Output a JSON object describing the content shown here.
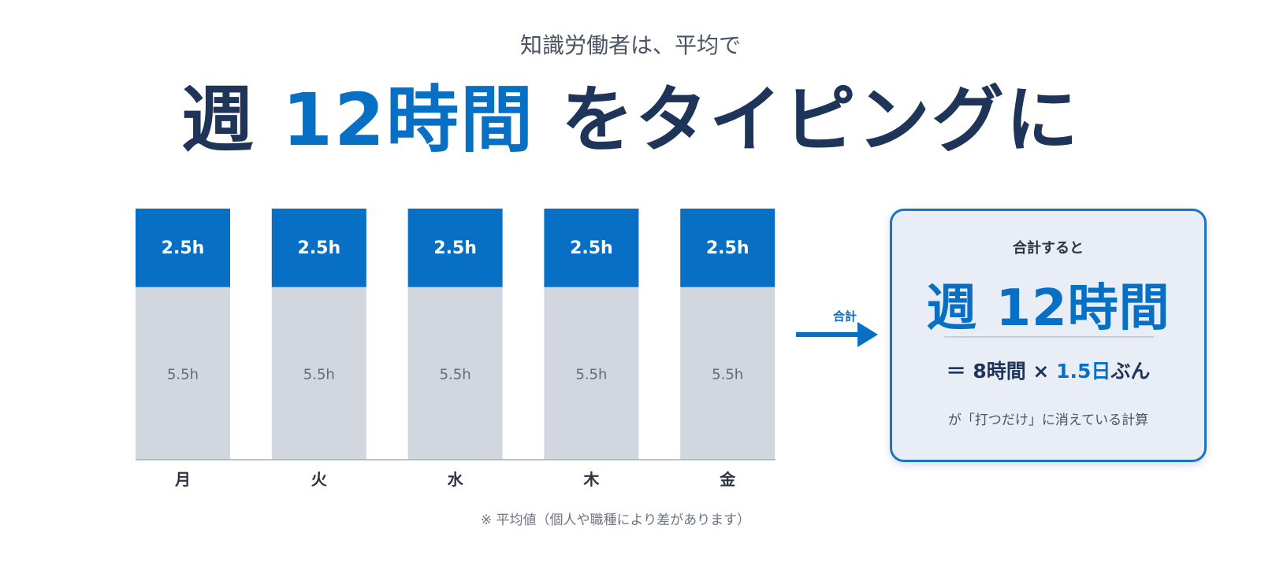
{
  "header": {
    "subtitle": "知識労働者は、平均で",
    "headline_prefix": "週",
    "headline_accent": "12時間",
    "headline_suffix": "をタイピングに"
  },
  "chart_data": {
    "type": "bar",
    "stacked": true,
    "categories": [
      "月",
      "火",
      "水",
      "木",
      "金"
    ],
    "series": [
      {
        "values": [
          5.5,
          5.5,
          5.5,
          5.5,
          5.5
        ],
        "labels": [
          "5.5h",
          "5.5h",
          "5.5h",
          "5.5h",
          "5.5h"
        ],
        "color": "#d2d6de"
      },
      {
        "values": [
          2.5,
          2.5,
          2.5,
          2.5,
          2.5
        ],
        "labels": [
          "2.5h",
          "2.5h",
          "2.5h",
          "2.5h",
          "2.5h"
        ],
        "color": "#0870c4"
      }
    ],
    "ylim": [
      0,
      8
    ],
    "grid": false
  },
  "arrow": {
    "label": "合計",
    "color": "#0870c4"
  },
  "summary": {
    "caption": "合計すると",
    "total": "週 12時間",
    "formula_prefix": "＝ 8時間 ×",
    "formula_accent": "1.5日",
    "formula_suffix": "ぶん",
    "note": "が「打つだけ」に消えている計算"
  },
  "footnote": "※ 平均値（個人や職種により差があります）",
  "colors": {
    "navy": "#1e3559",
    "accent": "#0870c4",
    "gray_bar": "#d2d6de",
    "panel_bg": "#e9eef6"
  }
}
